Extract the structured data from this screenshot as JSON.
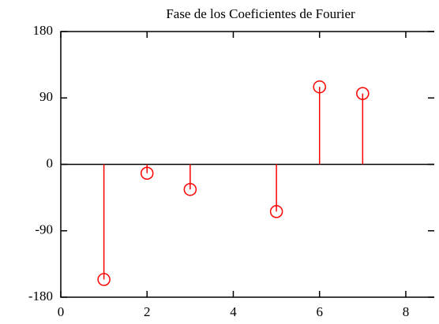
{
  "chart_data": {
    "type": "stem",
    "title": "Fase de los Coeficientes de Fourier",
    "x": [
      1,
      2,
      3,
      5,
      6,
      7
    ],
    "values": [
      -156,
      -12,
      -34,
      -64,
      105,
      96
    ],
    "color": "#ff0000",
    "xlim": [
      0,
      8.66
    ],
    "xticks": [
      0,
      2,
      4,
      6,
      8
    ],
    "ylim": [
      -180,
      180
    ],
    "yticks": [
      -180,
      -90,
      0,
      90,
      180
    ]
  }
}
